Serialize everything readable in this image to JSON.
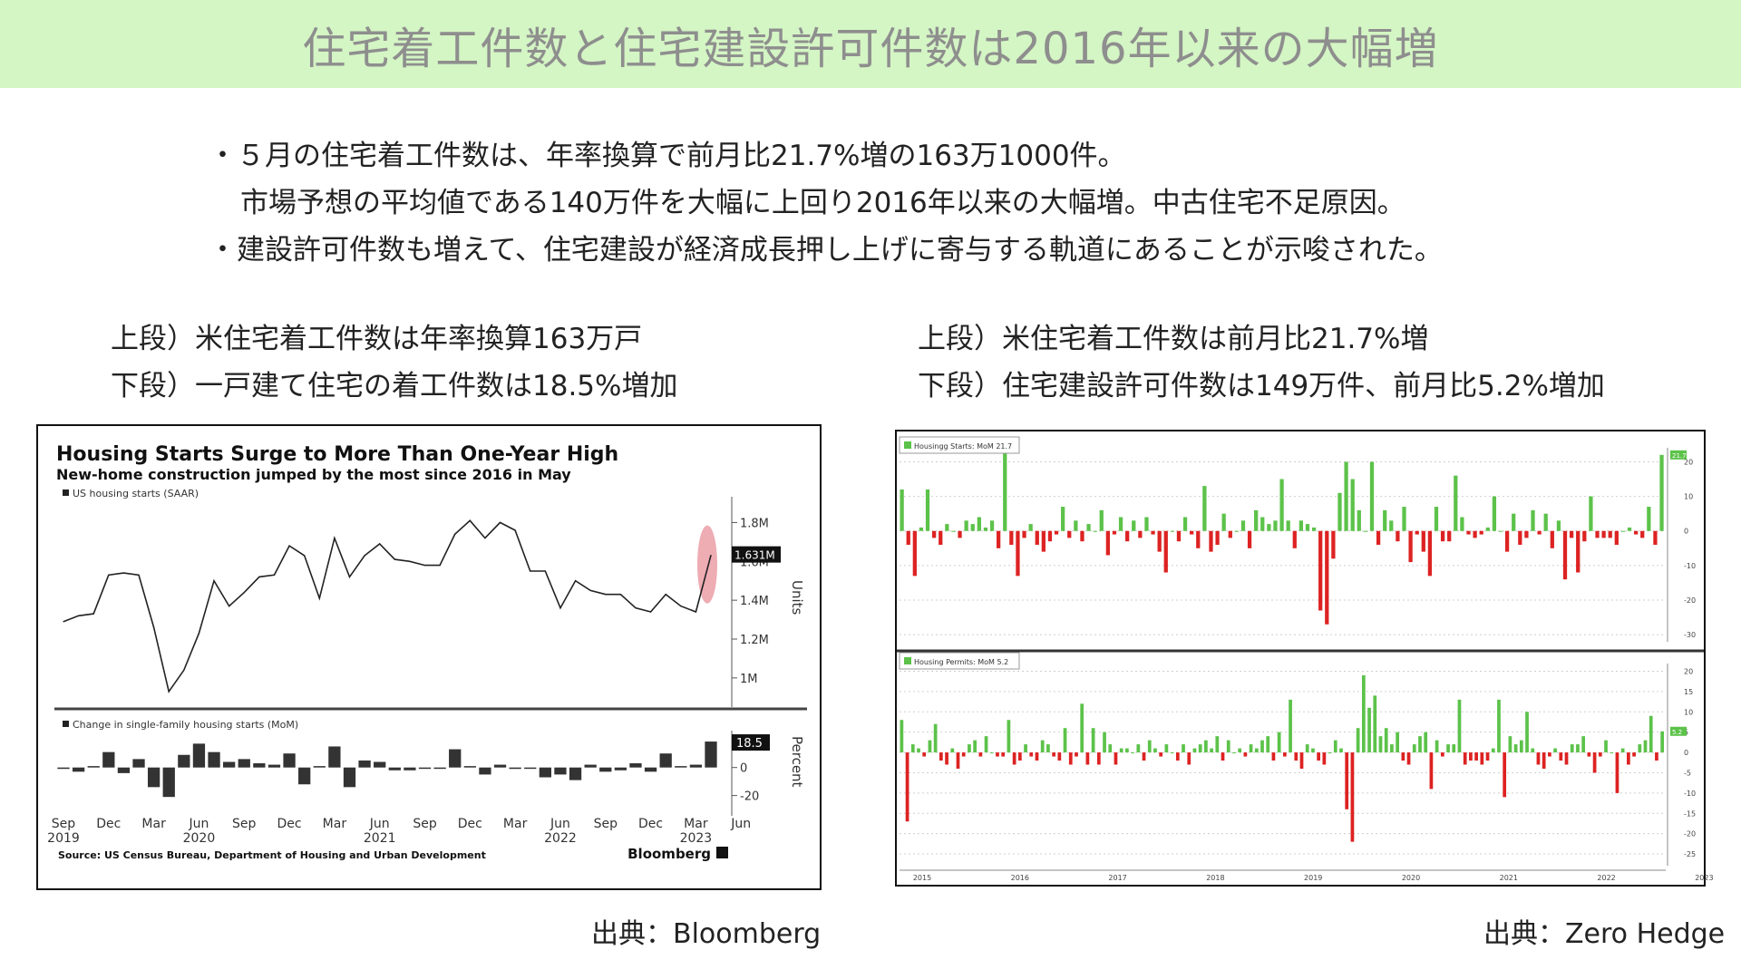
{
  "banner": {
    "title": "住宅着工件数と住宅建設許可件数は2016年以来の大幅増"
  },
  "bullets": [
    "・５月の住宅着工件数は、年率換算で前月比21.7%増の163万1000件。",
    "市場予想の平均値である140万件を大幅に上回り2016年以来の大幅増。中古住宅不足原因。",
    "・建設許可件数も増えて、住宅建設が経済成長押し上げに寄与する軌道にあることが示唆された。"
  ],
  "left_caption": {
    "upper": "上段）米住宅着工件数は年率換算163万戸",
    "lower": "下段）一戸建て住宅の着工件数は18.5%増加"
  },
  "right_caption": {
    "upper": "上段）米住宅着工件数は前月比21.7%増",
    "lower": "下段）住宅建設許可件数は149万件、前月比5.2%増加"
  },
  "sources": {
    "left": "出典：Bloomberg",
    "right": "出典：Zero Hedge"
  },
  "colors": {
    "banner_bg": "#d4f5c4",
    "positive_bar": "#5cc24a",
    "negative_bar": "#dd2222",
    "highlight": "#e8909a"
  },
  "chart_data": [
    {
      "type": "line",
      "title": "Housing Starts Surge to More Than One-Year High",
      "subtitle": "New-home construction jumped by the most since 2016 in May",
      "legend": "US housing starts (SAAR)",
      "ylabel": "Units",
      "ylim": [
        0.85,
        1.9
      ],
      "yticks": [
        "1.8M",
        "1.6M",
        "1.4M",
        "1.2M",
        "1M"
      ],
      "ytick_values": [
        1.8,
        1.6,
        1.4,
        1.2,
        1.0
      ],
      "last_value_label": "1.631M",
      "x_ticks": [
        {
          "m": "Sep",
          "y": "2019",
          "i": 0
        },
        {
          "m": "Dec",
          "y": "",
          "i": 3
        },
        {
          "m": "Mar",
          "y": "",
          "i": 6
        },
        {
          "m": "Jun",
          "y": "2020",
          "i": 9
        },
        {
          "m": "Sep",
          "y": "",
          "i": 12
        },
        {
          "m": "Dec",
          "y": "",
          "i": 15
        },
        {
          "m": "Mar",
          "y": "",
          "i": 18
        },
        {
          "m": "Jun",
          "y": "2021",
          "i": 21
        },
        {
          "m": "Sep",
          "y": "",
          "i": 24
        },
        {
          "m": "Dec",
          "y": "",
          "i": 27
        },
        {
          "m": "Mar",
          "y": "",
          "i": 30
        },
        {
          "m": "Jun",
          "y": "2022",
          "i": 33
        },
        {
          "m": "Sep",
          "y": "",
          "i": 36
        },
        {
          "m": "Dec",
          "y": "",
          "i": 39
        },
        {
          "m": "Mar",
          "y": "2023",
          "i": 42
        },
        {
          "m": "Jun",
          "y": "",
          "i": 45
        }
      ],
      "values": [
        1.29,
        1.32,
        1.33,
        1.53,
        1.54,
        1.53,
        1.26,
        0.93,
        1.04,
        1.23,
        1.5,
        1.37,
        1.44,
        1.52,
        1.53,
        1.68,
        1.63,
        1.41,
        1.72,
        1.52,
        1.63,
        1.69,
        1.61,
        1.6,
        1.58,
        1.58,
        1.74,
        1.81,
        1.72,
        1.8,
        1.76,
        1.55,
        1.55,
        1.36,
        1.5,
        1.45,
        1.43,
        1.43,
        1.36,
        1.34,
        1.43,
        1.37,
        1.34,
        1.631
      ],
      "highlight": "last point",
      "source": "Source: US Census Bureau, Department of Housing and Urban Development",
      "brand": "Bloomberg"
    },
    {
      "type": "bar",
      "legend": "Change in single-family housing starts (MoM)",
      "ylabel": "Percent",
      "ylim": [
        -28,
        25
      ],
      "yticks": [
        "0",
        "-20"
      ],
      "ytick_values": [
        0,
        -20
      ],
      "last_value_label": "18.5",
      "values": [
        -1,
        -3,
        1,
        11,
        -4,
        6,
        -14,
        -21,
        9,
        17,
        11,
        4,
        6,
        3,
        2,
        10,
        -12,
        1,
        15,
        -14,
        5,
        4,
        -2,
        -2,
        0,
        0,
        13,
        1,
        -5,
        2,
        -1,
        0,
        -7,
        -5,
        -9,
        2,
        -3,
        -2,
        3,
        -3,
        10,
        1,
        2,
        18.5
      ]
    },
    {
      "type": "bar",
      "legend": "Housingg Starts: MoM 21.7",
      "ylim": [
        -31,
        23
      ],
      "yticks": [
        "20",
        "10",
        "0",
        "-10",
        "-20",
        "-30"
      ],
      "ytick_values": [
        20,
        10,
        0,
        -10,
        -20,
        -30
      ],
      "last_value_label": "21.7",
      "values": [
        12,
        -4,
        -13,
        1,
        12,
        -2,
        -4,
        2,
        0,
        -2,
        3,
        2,
        4,
        1,
        3,
        -5,
        23,
        -4,
        -13,
        -2,
        2,
        -4,
        -6,
        -3,
        -1,
        7,
        -2,
        3,
        -3,
        2,
        0,
        6,
        -7,
        -1,
        4,
        -3,
        3,
        -2,
        4,
        -1,
        -6,
        -12,
        0,
        -3,
        4,
        -1,
        -5,
        13,
        -6,
        -4,
        5,
        -2,
        0,
        3,
        -5,
        6,
        4,
        2,
        3,
        15,
        3,
        -5,
        3,
        2,
        1,
        -23,
        -27,
        -8,
        11,
        20,
        15,
        6,
        0,
        20,
        -4,
        6,
        3,
        -3,
        7,
        -9,
        -1,
        -6,
        -13,
        7,
        -3,
        -3,
        16,
        4,
        -1,
        -2,
        -1,
        1,
        10,
        0,
        -6,
        5,
        -4,
        -2,
        6,
        -1,
        5,
        -5,
        3,
        -14,
        -2,
        -12,
        -3,
        10,
        -2,
        -2,
        -2,
        -4,
        0,
        1,
        -1,
        -2,
        7,
        -4,
        22
      ]
    },
    {
      "type": "bar",
      "legend": "Housing Permits: MoM 5.2",
      "ylim": [
        -27,
        21
      ],
      "yticks": [
        "20",
        "15",
        "10",
        "5",
        "0",
        "-5",
        "-10",
        "-15",
        "-20",
        "-25"
      ],
      "ytick_values": [
        20,
        15,
        10,
        5,
        0,
        -5,
        -10,
        -15,
        -20,
        -25
      ],
      "last_value_label": "5.2",
      "x_ticks": [
        "2015",
        "2016",
        "2017",
        "2018",
        "2019",
        "2020",
        "2021",
        "2022",
        "2023"
      ],
      "values": [
        8,
        -17,
        2,
        1,
        -1,
        3,
        7,
        -2,
        -3,
        1,
        -4,
        -1,
        2,
        3,
        -1,
        4,
        0,
        -1,
        -1,
        8,
        -3,
        -2,
        2,
        -1,
        -2,
        3,
        2,
        -1,
        -2,
        6,
        -3,
        -1,
        12,
        -3,
        6,
        -3,
        5,
        2,
        -3,
        1,
        1,
        0,
        2,
        -2,
        3,
        1,
        -1,
        2,
        0,
        -2,
        2,
        -3,
        1,
        2,
        3,
        1,
        4,
        -2,
        3,
        0,
        1,
        -1,
        2,
        1,
        3,
        4,
        -2,
        5,
        -1,
        13,
        -2,
        -4,
        2,
        1,
        -2,
        -3,
        0,
        3,
        1,
        -14,
        -22,
        6,
        19,
        11,
        14,
        4,
        6,
        2,
        5,
        -2,
        -3,
        2,
        4,
        5,
        -9,
        3,
        -1,
        2,
        2,
        13,
        -3,
        -2,
        -2,
        -3,
        -2,
        1,
        13,
        -11,
        4,
        2,
        3,
        10,
        1,
        -3,
        -4,
        -1,
        1,
        -2,
        -3,
        2,
        2,
        4,
        -1,
        -5,
        -1,
        3,
        0,
        -10,
        1,
        -3,
        -1,
        2,
        3,
        9,
        -2,
        5.2
      ]
    }
  ]
}
